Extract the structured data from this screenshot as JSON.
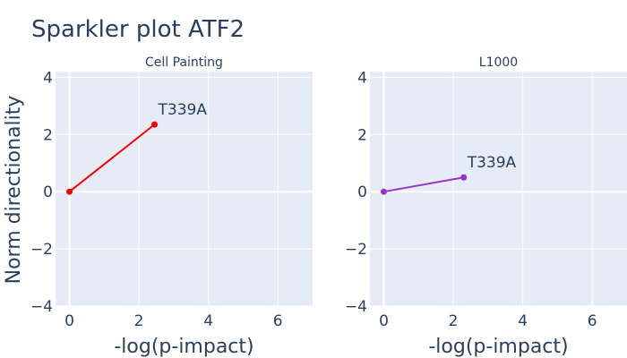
{
  "chart_data": {
    "title": "Sparkler plot ATF2",
    "ylabel": "Norm directionality",
    "subplots": [
      {
        "type": "line",
        "subtitle": "Cell Painting",
        "xlabel": "-log(p-impact)",
        "xlim": [
          -0.4,
          7
        ],
        "ylim": [
          -4,
          4.2
        ],
        "x_ticks": [
          0,
          2,
          4,
          6
        ],
        "y_ticks": [
          -4,
          -2,
          0,
          2,
          4
        ],
        "grid": true,
        "color": "#ff0000",
        "series": [
          {
            "x": [
              0,
              2.45
            ],
            "y": [
              0,
              2.35
            ],
            "label": "T339A"
          }
        ]
      },
      {
        "type": "line",
        "subtitle": "L1000",
        "xlabel": "-log(p-impact)",
        "xlim": [
          -0.4,
          7
        ],
        "ylim": [
          -4,
          4.2
        ],
        "x_ticks": [
          0,
          2,
          4,
          6
        ],
        "y_ticks": [
          -4,
          -2,
          0,
          2,
          4
        ],
        "grid": true,
        "color": "#9932cc",
        "series": [
          {
            "x": [
              0,
              2.3
            ],
            "y": [
              0,
              0.5
            ],
            "label": "T339A"
          }
        ]
      }
    ]
  }
}
